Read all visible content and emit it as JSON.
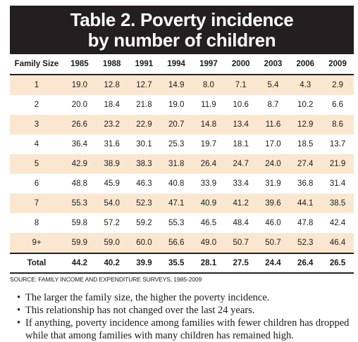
{
  "title": {
    "line1": "Table 2. Poverty incidence",
    "line2": "by number of children"
  },
  "columns": [
    "Family Size",
    "1985",
    "1988",
    "1991",
    "1994",
    "1997",
    "2000",
    "2003",
    "2006",
    "2009"
  ],
  "rows": [
    [
      "1",
      "19.0",
      "12.8",
      "12.7",
      "14.9",
      "8.0",
      "7.1",
      "5.4",
      "4.3",
      "2.9"
    ],
    [
      "2",
      "20.0",
      "18.4",
      "21.8",
      "19.0",
      "11.9",
      "10.6",
      "8.7",
      "10.2",
      "6.6"
    ],
    [
      "3",
      "26.6",
      "23.2",
      "22.9",
      "20.7",
      "14.8",
      "13.4",
      "11.6",
      "12.9",
      "8.6"
    ],
    [
      "4",
      "36.4",
      "31.6",
      "30.1",
      "25.3",
      "19.7",
      "18.1",
      "17.0",
      "18.5",
      "13.7"
    ],
    [
      "5",
      "42.9",
      "38.9",
      "38.3",
      "31.8",
      "26.4",
      "24.7",
      "24.0",
      "27.4",
      "21.9"
    ],
    [
      "6",
      "48.8",
      "45.9",
      "46.3",
      "40.8",
      "33.9",
      "33.4",
      "31.9",
      "36.8",
      "31.4"
    ],
    [
      "7",
      "55.3",
      "54.0",
      "52.3",
      "47.1",
      "40.9",
      "41.2",
      "39.6",
      "44.1",
      "38.5"
    ],
    [
      "8",
      "59.8",
      "57.2",
      "59.2",
      "55.3",
      "46.5",
      "48.4",
      "46.0",
      "47.8",
      "42.4"
    ],
    [
      "9+",
      "59.9",
      "59.0",
      "60.0",
      "56.6",
      "49.0",
      "50.7",
      "50.7",
      "52.3",
      "46.4"
    ]
  ],
  "total": [
    "Total",
    "44.2",
    "40.2",
    "39.9",
    "35.5",
    "28.1",
    "27.5",
    "24.4",
    "26.4",
    "26.5"
  ],
  "source": "SOURCE: FAMILY INCOME AND EXPENDITURE SURVEYS, 1985-2009",
  "notes": [
    "The larger the family size, the higher the poverty incidence.",
    "This relationship has not changed over the last 24 years.",
    "If anything, poverty incidence among families with fewer children has dropped while that among families with many children has remained high."
  ],
  "bullet_glyph": "•",
  "colors": {
    "title_bg": "#231f20",
    "stripe": "#fbe7d0"
  }
}
